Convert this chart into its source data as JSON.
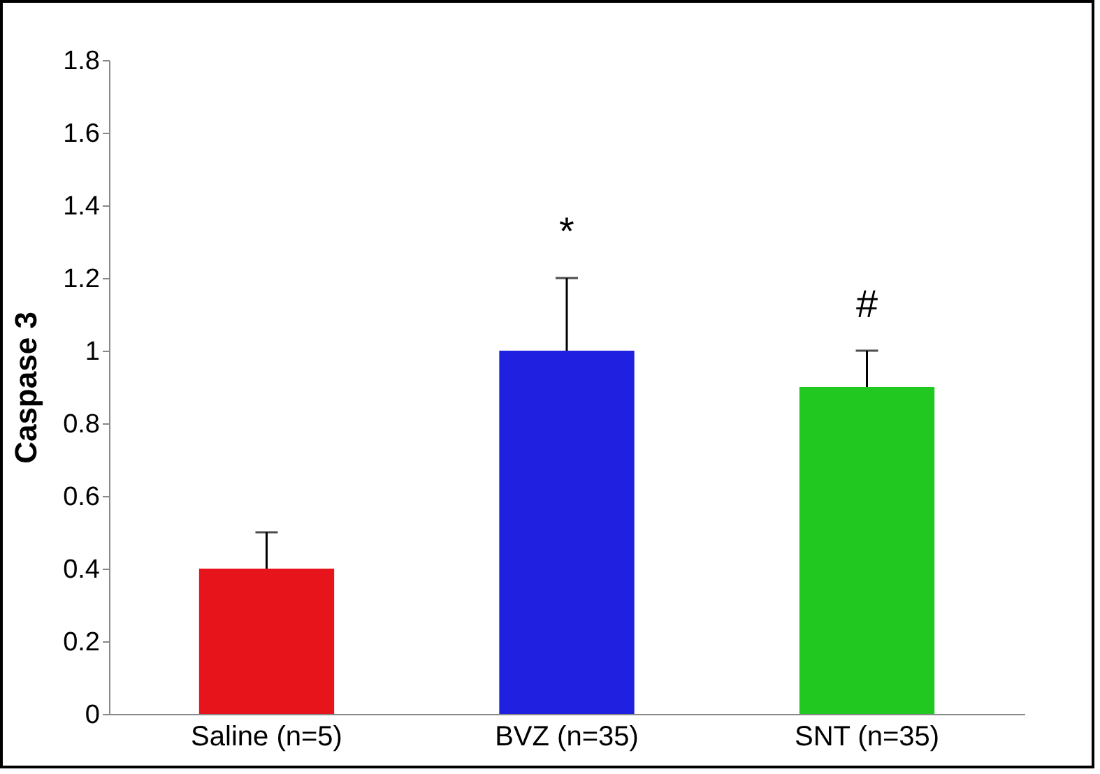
{
  "chart_data": {
    "type": "bar",
    "ylabel": "Caspase 3",
    "categories": [
      "Saline (n=5)",
      "BVZ (n=35)",
      "SNT (n=35)"
    ],
    "values": [
      0.4,
      1.0,
      0.9
    ],
    "colors": [
      "#e8141c",
      "#2020e0",
      "#20c820"
    ],
    "errors": [
      [
        0.4,
        0.5
      ],
      [
        1.0,
        1.2
      ],
      [
        0.9,
        1.0
      ]
    ],
    "ylim": [
      0,
      1.8
    ],
    "yticks": [
      0,
      0.2,
      0.4,
      0.6,
      0.8,
      1,
      1.2,
      1.4,
      1.6,
      1.8
    ],
    "annotations": [
      {
        "text": "*",
        "x": "BVZ (n=35)",
        "y": 1.2
      },
      {
        "text": "#",
        "x": "SNT (n=35)",
        "y": 1.0
      }
    ],
    "grid": false,
    "legend": false
  }
}
